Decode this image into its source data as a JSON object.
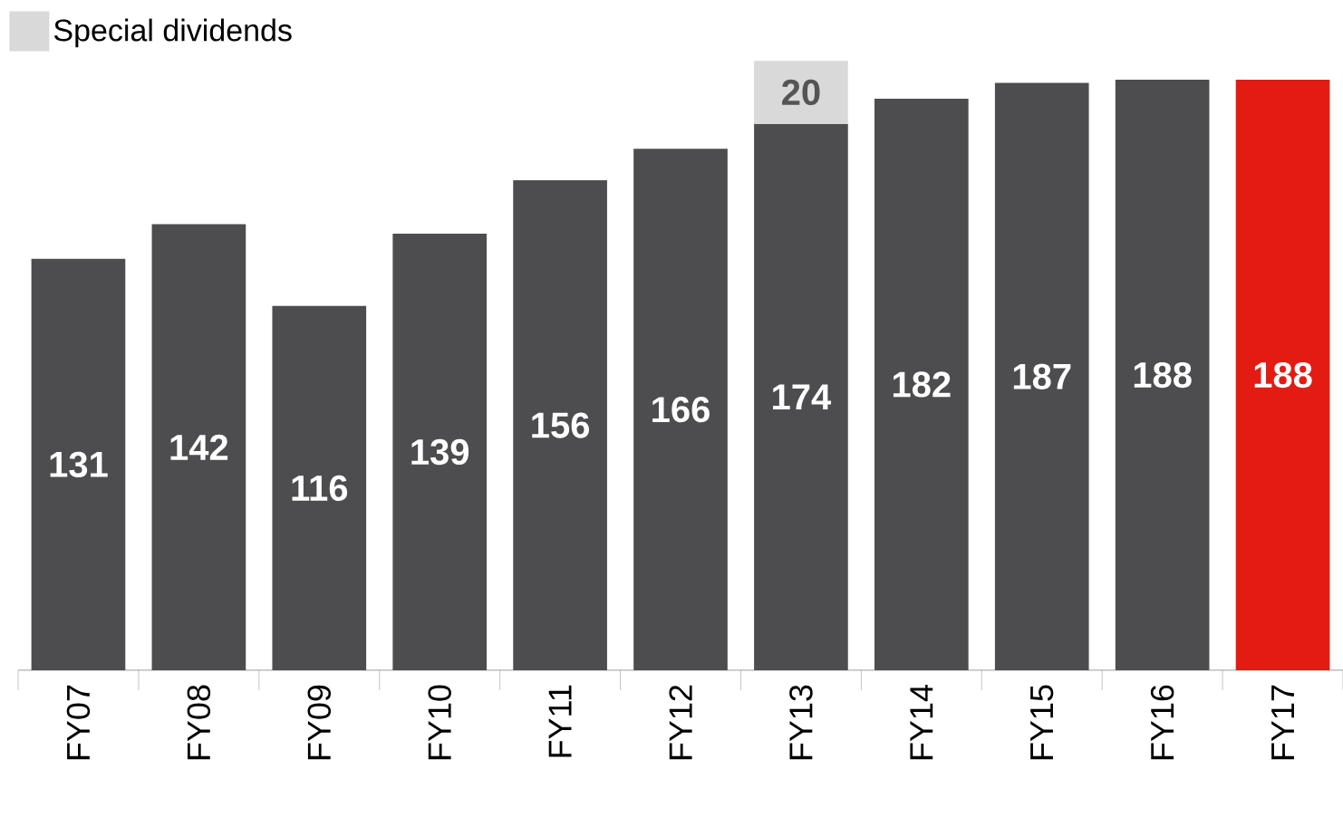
{
  "chart_data": {
    "type": "bar",
    "stacked": true,
    "categories": [
      "FY07",
      "FY08",
      "FY09",
      "FY10",
      "FY11",
      "FY12",
      "FY13",
      "FY14",
      "FY15",
      "FY16",
      "FY17"
    ],
    "series": [
      {
        "colors": [
          "#4d4d4f",
          "#4d4d4f",
          "#4d4d4f",
          "#4d4d4f",
          "#4d4d4f",
          "#4d4d4f",
          "#4d4d4f",
          "#4d4d4f",
          "#4d4d4f",
          "#4d4d4f",
          "#e31b13"
        ],
        "values": [
          131,
          142,
          116,
          139,
          156,
          166,
          174,
          182,
          187,
          188,
          188
        ]
      },
      {
        "name": "Special dividends",
        "color": "#d9d9d9",
        "values": [
          null,
          null,
          null,
          null,
          null,
          null,
          20,
          null,
          null,
          null,
          null
        ]
      }
    ],
    "data_labels": true,
    "legend": "top left"
  }
}
